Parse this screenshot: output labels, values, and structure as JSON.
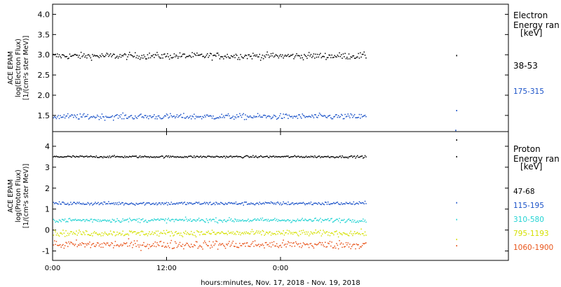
{
  "chart_data": [
    {
      "type": "scatter",
      "panel": "electron",
      "ylabel": [
        "ACE EPAM",
        "log(Electron Flux)",
        "[1/(cm²s ster MeV)]"
      ],
      "ylim": [
        1.1,
        4.25
      ],
      "yticks": [
        1.5,
        2.0,
        2.5,
        3.0,
        3.5,
        4.0
      ],
      "yticklabels": [
        "1.5",
        "2.0",
        "2.5",
        "3.0",
        "3.5",
        "4.0"
      ],
      "legend_title": [
        "Electron",
        "Energy ran",
        "[keV]"
      ],
      "series": [
        {
          "name": "38-53",
          "color": "#000000",
          "mean": 2.97,
          "spread": 0.04,
          "late_points": [
            [
              42.5,
              2.98
            ]
          ]
        },
        {
          "name": "175-315",
          "color": "#1a52c8",
          "mean": 1.47,
          "spread": 0.035,
          "late_points": [
            [
              42.5,
              1.62
            ],
            [
              42.4,
              1.13
            ]
          ]
        }
      ]
    },
    {
      "type": "scatter",
      "panel": "proton",
      "ylabel": [
        "ACE EPAM",
        "log(Proton Flux)",
        "[1/(cm²s ster MeV)]"
      ],
      "ylim": [
        -1.45,
        4.7
      ],
      "yticks": [
        -1,
        0,
        1,
        2,
        3,
        4
      ],
      "yticklabels": [
        "-1",
        "0",
        "1",
        "2",
        "3",
        "4"
      ],
      "legend_title": [
        "Proton",
        "Energy ran",
        "[keV]"
      ],
      "series": [
        {
          "name": "47-68",
          "color": "#000000",
          "mean": 3.5,
          "spread": 0.025,
          "late_points": [
            [
              42.5,
              4.3
            ],
            [
              42.5,
              3.5
            ]
          ]
        },
        {
          "name": "115-195",
          "color": "#1a52c8",
          "mean": 1.27,
          "spread": 0.04,
          "late_points": [
            [
              42.5,
              1.3
            ]
          ]
        },
        {
          "name": "310-580",
          "color": "#22d3d3",
          "mean": 0.47,
          "spread": 0.05,
          "late_points": [
            [
              42.5,
              0.5
            ]
          ]
        },
        {
          "name": "795-1193",
          "color": "#d4e000",
          "mean": -0.15,
          "spread": 0.07,
          "late_points": [
            [
              42.5,
              -0.45
            ]
          ]
        },
        {
          "name": "1060-1900",
          "color": "#e8541a",
          "mean": -0.7,
          "spread": 0.1,
          "late_points": [
            [
              42.5,
              -0.75
            ]
          ]
        }
      ]
    }
  ],
  "x_axis": {
    "xlim": [
      0,
      48
    ],
    "data_end_hour": 33.0,
    "ticks": [
      0,
      12,
      24
    ],
    "ticklabels": [
      "0:00",
      "12:00",
      "0:00"
    ],
    "xlabel": "hours:minutes, Nov. 17, 2018 - Nov. 19, 2018"
  }
}
